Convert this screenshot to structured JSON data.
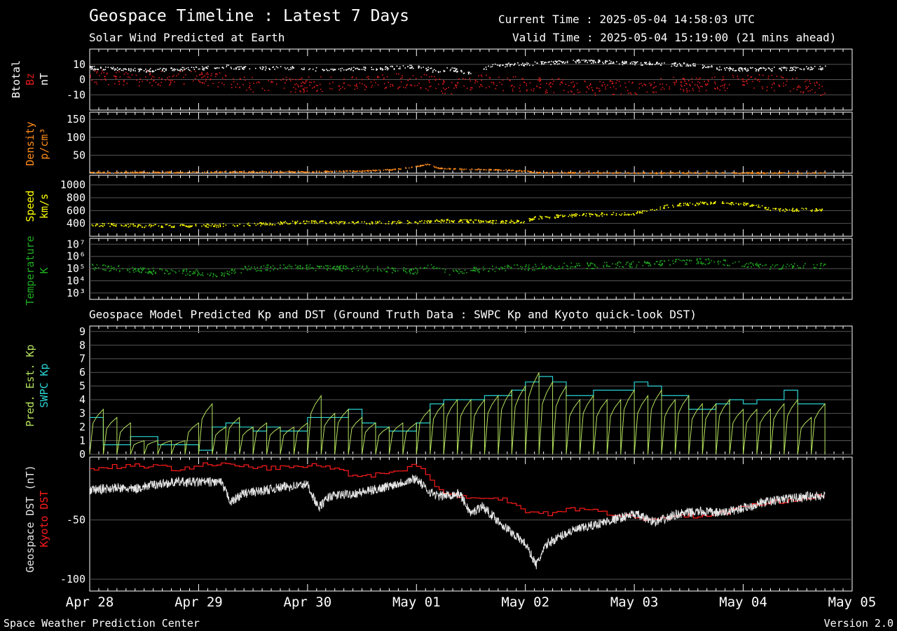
{
  "header": {
    "title": "Geospace Timeline : Latest 7 Days",
    "subtitle": "Solar Wind Predicted at Earth",
    "current_time": "Current Time : 2025-05-04 14:58:03 UTC",
    "valid_time": "Valid Time : 2025-05-04 15:19:00 (21 mins ahead)"
  },
  "section2_title": "Geospace Model Predicted Kp and DST (Ground Truth Data : SWPC Kp and Kyoto quick-look DST)",
  "footer": {
    "left": "Space Weather Prediction Center",
    "right": "Version 2.0"
  },
  "colors": {
    "white": "#ffffff",
    "bz": "#e01b1b",
    "density": "#ff8c1a",
    "speed": "#ffff00",
    "temperature": "#1faa1f",
    "pred_kp": "#b5e35c",
    "swpc_kp": "#2ad4d4",
    "kyoto_dst": "#ff1a1a",
    "geospace_dst": "#e6e6e6",
    "grid": "#555555"
  },
  "x_axis": {
    "tick_labels": [
      "Apr 28",
      "Apr 29",
      "Apr 30",
      "May 01",
      "May 02",
      "May 03",
      "May 04",
      "May 05"
    ],
    "range_days": [
      0,
      7
    ]
  },
  "chart_data": [
    {
      "type": "scatter",
      "panel": "magnetic-field",
      "ylabel_parts": [
        "Btotal",
        "Bz",
        "nT"
      ],
      "yticks": [
        "10",
        "0",
        "-10"
      ],
      "ylim": [
        -20,
        20
      ],
      "x_unit": "days since Apr 28 00:00 UTC",
      "series": [
        {
          "name": "Btotal",
          "x": [
            0,
            0.5,
            1.0,
            1.2,
            1.5,
            1.8,
            2.0,
            2.2,
            2.5,
            2.8,
            3.0,
            3.2,
            3.3,
            3.5,
            3.7,
            4.0,
            4.5,
            5.0,
            5.5,
            5.8,
            6.0,
            6.5,
            6.75
          ],
          "y": [
            8,
            6.5,
            7.5,
            9,
            7.5,
            8,
            7.5,
            6.5,
            7.5,
            8,
            9,
            5.5,
            7.5,
            4.5,
            9.5,
            10.5,
            12.5,
            11,
            10,
            7.5,
            7,
            7.5,
            8
          ]
        },
        {
          "name": "Bz",
          "x": [
            0,
            0.5,
            1.0,
            1.3,
            1.5,
            2.0,
            2.5,
            3.0,
            3.3,
            3.6,
            4.0,
            4.3,
            4.6,
            5.0,
            5.3,
            5.6,
            6.0,
            6.3,
            6.6,
            6.75
          ],
          "y": [
            2,
            1,
            2,
            -1,
            -3,
            -3,
            -2,
            0,
            -5,
            -1,
            -3,
            -4,
            -5,
            -5,
            -3,
            -3,
            -1,
            -2,
            -4,
            -7
          ]
        }
      ]
    },
    {
      "type": "scatter",
      "panel": "density",
      "ylabel_parts": [
        "Density",
        "p/cm³"
      ],
      "yticks": [
        "150",
        "100",
        "50"
      ],
      "ylim": [
        0,
        170
      ],
      "series": [
        {
          "name": "Density",
          "x": [
            0,
            1.0,
            2.0,
            2.5,
            2.8,
            3.0,
            3.1,
            3.2,
            3.5,
            3.8,
            4.0,
            4.1,
            5.0,
            6.0,
            6.75
          ],
          "y": [
            3,
            4,
            5,
            7,
            12,
            20,
            26,
            15,
            12,
            10,
            7,
            3,
            2,
            2,
            2
          ]
        }
      ]
    },
    {
      "type": "scatter",
      "panel": "speed",
      "ylabel_parts": [
        "Speed",
        "km/s"
      ],
      "yticks": [
        "1000",
        "800",
        "600",
        "400"
      ],
      "ylim": [
        200,
        1150
      ],
      "series": [
        {
          "name": "Speed",
          "x": [
            0,
            0.5,
            1.0,
            1.5,
            2.0,
            2.5,
            3.0,
            3.3,
            3.7,
            4.0,
            4.1,
            4.5,
            5.0,
            5.3,
            5.7,
            6.0,
            6.3,
            6.75
          ],
          "y": [
            390,
            370,
            370,
            390,
            430,
            420,
            430,
            450,
            430,
            440,
            500,
            540,
            560,
            680,
            730,
            710,
            620,
            620
          ]
        }
      ]
    },
    {
      "type": "scatter",
      "panel": "temperature",
      "ylabel_parts": [
        "Temperature",
        "K"
      ],
      "yticks": [
        "10⁷",
        "10⁶",
        "10⁵",
        "10⁴",
        "10³"
      ],
      "yscale": "log",
      "ylim": [
        300,
        30000000
      ],
      "series": [
        {
          "name": "Temperature",
          "x": [
            0,
            0.5,
            1.0,
            1.2,
            1.5,
            2.0,
            2.5,
            3.0,
            3.1,
            3.3,
            3.7,
            4.0,
            4.3,
            4.7,
            5.0,
            5.3,
            5.6,
            6.0,
            6.3,
            6.75
          ],
          "y": [
            150000,
            70000,
            50000,
            30000,
            120000,
            130000,
            110000,
            70000,
            150000,
            60000,
            110000,
            140000,
            170000,
            200000,
            250000,
            350000,
            450000,
            250000,
            150000,
            180000
          ]
        }
      ]
    },
    {
      "type": "line",
      "panel": "kp",
      "ylabel_parts": [
        "Pred. Est. Kp",
        "SWPC Kp"
      ],
      "yticks": [
        "9",
        "8",
        "7",
        "6",
        "5",
        "4",
        "3",
        "2",
        "1",
        "0"
      ],
      "ylim": [
        0,
        9.4
      ],
      "series": [
        {
          "name": "SWPC Kp",
          "x": [
            0,
            0.125,
            0.25,
            0.375,
            0.5,
            0.625,
            0.75,
            0.875,
            1.0,
            1.125,
            1.25,
            1.375,
            1.5,
            1.625,
            1.75,
            1.875,
            2.0,
            2.125,
            2.25,
            2.375,
            2.5,
            2.625,
            2.75,
            2.875,
            3.0,
            3.125,
            3.25,
            3.375,
            3.5,
            3.625,
            3.75,
            3.875,
            4.0,
            4.125,
            4.25,
            4.375,
            4.5,
            4.625,
            4.75,
            4.875,
            5.0,
            5.125,
            5.25,
            5.375,
            5.5,
            5.625,
            5.75,
            5.875,
            6.0,
            6.125,
            6.25,
            6.375,
            6.5,
            6.625
          ],
          "y": [
            2.7,
            0.7,
            0.7,
            1.3,
            1.3,
            0.7,
            0.7,
            0.7,
            0.3,
            2.0,
            2.3,
            2.0,
            1.7,
            2.0,
            1.7,
            1.7,
            2.7,
            2.7,
            2.7,
            3.3,
            2.3,
            2.0,
            1.7,
            1.7,
            2.3,
            3.7,
            4.0,
            4.0,
            4.0,
            4.3,
            4.3,
            4.7,
            5.3,
            5.7,
            5.3,
            4.3,
            4.3,
            4.7,
            4.7,
            4.7,
            5.3,
            5.0,
            4.3,
            4.3,
            3.3,
            3.3,
            3.7,
            4.0,
            3.7,
            4.0,
            4.0,
            4.7,
            3.7,
            3.7
          ]
        },
        {
          "name": "Pred. Est. Kp",
          "x": [
            0,
            0.125,
            0.25,
            0.375,
            0.5,
            0.625,
            0.75,
            0.875,
            1.0,
            1.125,
            1.25,
            1.375,
            1.5,
            1.625,
            1.75,
            1.875,
            2.0,
            2.125,
            2.25,
            2.375,
            2.5,
            2.625,
            2.75,
            2.875,
            3.0,
            3.125,
            3.25,
            3.375,
            3.5,
            3.625,
            3.75,
            3.875,
            4.0,
            4.125,
            4.25,
            4.375,
            4.5,
            4.625,
            4.75,
            4.875,
            5.0,
            5.125,
            5.25,
            5.375,
            5.5,
            5.625,
            5.75,
            5.875,
            6.0,
            6.125,
            6.25,
            6.375,
            6.5,
            6.625
          ],
          "y": [
            3.3,
            2.7,
            2.3,
            1.0,
            1.0,
            1.0,
            1.0,
            2.3,
            3.7,
            2.0,
            2.7,
            2.0,
            2.3,
            2.0,
            2.0,
            2.3,
            4.3,
            3.0,
            3.3,
            2.7,
            2.3,
            2.0,
            2.3,
            2.3,
            3.3,
            3.7,
            4.0,
            4.0,
            4.0,
            4.3,
            4.7,
            5.0,
            6.0,
            5.3,
            5.0,
            4.0,
            4.3,
            4.0,
            4.0,
            4.7,
            4.3,
            4.7,
            4.0,
            4.3,
            3.7,
            3.7,
            4.0,
            3.3,
            3.3,
            3.3,
            3.7,
            4.0,
            2.7,
            3.7
          ]
        }
      ]
    },
    {
      "type": "line",
      "panel": "dst",
      "ylabel_parts": [
        "Geospace DST (nT)",
        "Kyoto DST"
      ],
      "yticks": [
        "-50",
        "-100"
      ],
      "ylim": [
        -110,
        3
      ],
      "series": [
        {
          "name": "Kyoto DST",
          "x": [
            0,
            0.2,
            0.4,
            0.6,
            0.8,
            1.0,
            1.2,
            1.4,
            1.6,
            1.8,
            2.0,
            2.2,
            2.4,
            2.6,
            2.8,
            3.0,
            3.1,
            3.2,
            3.4,
            3.6,
            3.8,
            4.0,
            4.2,
            4.4,
            4.6,
            4.8,
            5.0,
            5.2,
            5.4,
            5.6,
            5.8,
            6.0,
            6.2,
            6.4,
            6.6,
            6.75
          ],
          "y": [
            -7,
            -5,
            -4,
            -5,
            -7,
            -4,
            -3,
            -5,
            -6,
            -6,
            -4,
            -5,
            -12,
            -12,
            -9,
            -3,
            -13,
            -26,
            -30,
            -33,
            -32,
            -42,
            -45,
            -40,
            -42,
            -45,
            -48,
            -50,
            -45,
            -48,
            -44,
            -38,
            -37,
            -33,
            -31,
            -30
          ]
        },
        {
          "name": "Geospace DST",
          "x": [
            0,
            0.2,
            0.4,
            0.6,
            0.8,
            1.0,
            1.2,
            1.3,
            1.4,
            1.6,
            1.8,
            2.0,
            2.1,
            2.2,
            2.4,
            2.6,
            2.8,
            3.0,
            3.1,
            3.2,
            3.4,
            3.5,
            3.6,
            3.8,
            4.0,
            4.1,
            4.2,
            4.4,
            4.6,
            4.8,
            5.0,
            5.2,
            5.4,
            5.6,
            5.8,
            6.0,
            6.2,
            6.4,
            6.6,
            6.75
          ],
          "y": [
            -25,
            -23,
            -24,
            -20,
            -18,
            -18,
            -18,
            -35,
            -28,
            -25,
            -22,
            -20,
            -40,
            -30,
            -28,
            -25,
            -20,
            -15,
            -25,
            -30,
            -28,
            -45,
            -38,
            -55,
            -70,
            -88,
            -70,
            -60,
            -55,
            -50,
            -45,
            -52,
            -45,
            -43,
            -44,
            -40,
            -35,
            -32,
            -30,
            -30
          ]
        }
      ]
    }
  ]
}
